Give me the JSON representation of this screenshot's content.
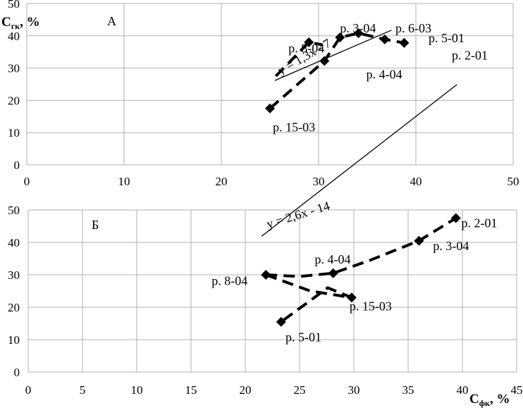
{
  "chart_data": [
    {
      "type": "scatter",
      "panel_label": "А",
      "ylabel_main": "C",
      "ylabel_sub": "гк",
      "ylabel_unit": ", %",
      "xlim": [
        0,
        50
      ],
      "ylim": [
        0,
        50
      ],
      "x_ticks": [
        "0",
        "10",
        "20",
        "30",
        "40",
        "50"
      ],
      "y_ticks": [
        "0",
        "10",
        "20",
        "30",
        "40",
        "50"
      ],
      "grid": true,
      "dashed_path": [
        {
          "x": 25.0,
          "y": 17.5
        },
        {
          "x": 30.6,
          "y": 32.2
        },
        {
          "x": 32.2,
          "y": 39.5
        },
        {
          "x": 34.1,
          "y": 40.8
        },
        {
          "x": 36.8,
          "y": 38.9
        },
        {
          "x": 38.8,
          "y": 37.8
        }
      ],
      "dashed_branch": [
        {
          "x": 25.6,
          "y": 27.5
        },
        {
          "x": 29.0,
          "y": 38.0
        },
        {
          "x": 30.4,
          "y": 37.2
        }
      ],
      "points": [
        {
          "x": 25.0,
          "y": 17.5
        },
        {
          "x": 29.0,
          "y": 38.0
        },
        {
          "x": 30.6,
          "y": 32.2
        },
        {
          "x": 32.2,
          "y": 39.5
        },
        {
          "x": 34.1,
          "y": 40.8
        },
        {
          "x": 36.8,
          "y": 38.9
        },
        {
          "x": 38.8,
          "y": 37.8
        }
      ],
      "trendline": {
        "equation": "y = 1,3x - 7",
        "slope": 1.3,
        "intercept": -7,
        "x_range": [
          25.5,
          37.5
        ]
      },
      "annotations": [
        {
          "text": "р. 8-04",
          "x": 26.9,
          "y": 34.8
        },
        {
          "text": "р. 3-04",
          "x": 32.2,
          "y": 41.0
        },
        {
          "text": "р. 6-03",
          "x": 37.9,
          "y": 41.0
        },
        {
          "text": "р. 5-01",
          "x": 41.3,
          "y": 38.0
        },
        {
          "text": "р. 2-01",
          "x": 43.7,
          "y": 32.6
        },
        {
          "text": "р. 4-04",
          "x": 34.9,
          "y": 26.7
        },
        {
          "text": "р. 15-03",
          "x": 25.3,
          "y": 10.4
        }
      ]
    },
    {
      "type": "scatter",
      "panel_label": "Б",
      "xlabel_main": "C",
      "xlabel_sub": "фк",
      "xlabel_unit": ", %",
      "xlim": [
        0,
        45
      ],
      "ylim": [
        0,
        50
      ],
      "x_ticks": [
        "0",
        "5",
        "10",
        "15",
        "20",
        "25",
        "30",
        "35",
        "40",
        "45"
      ],
      "y_ticks": [
        "0",
        "10",
        "20",
        "30",
        "40",
        "50"
      ],
      "grid": true,
      "dashed_path": [
        {
          "x": 21.9,
          "y": 30.0
        },
        {
          "x": 25.0,
          "y": 29.5
        },
        {
          "x": 28.1,
          "y": 30.5
        },
        {
          "x": 31.5,
          "y": 34.5
        },
        {
          "x": 36.0,
          "y": 40.5
        },
        {
          "x": 39.4,
          "y": 47.5
        }
      ],
      "dashed_branch": [
        {
          "x": 21.9,
          "y": 30.0
        },
        {
          "x": 26.0,
          "y": 25.0
        },
        {
          "x": 29.8,
          "y": 23.0
        },
        {
          "x": 27.6,
          "y": 26.0
        },
        {
          "x": 23.3,
          "y": 15.5
        }
      ],
      "points": [
        {
          "x": 21.9,
          "y": 30.0
        },
        {
          "x": 23.3,
          "y": 15.5
        },
        {
          "x": 28.1,
          "y": 30.5
        },
        {
          "x": 29.8,
          "y": 23.0
        },
        {
          "x": 36.0,
          "y": 40.5
        },
        {
          "x": 39.4,
          "y": 47.5
        }
      ],
      "trendline": {
        "equation": "y = 2,6x - 14",
        "slope": 2.6,
        "intercept": -14,
        "x_range": [
          21.5,
          39.5
        ]
      },
      "annotations": [
        {
          "text": "р. 2-01",
          "x": 39.9,
          "y": 44.7
        },
        {
          "text": "р. 3-04",
          "x": 37.3,
          "y": 37.6
        },
        {
          "text": "р. 4-04",
          "x": 26.4,
          "y": 33.5
        },
        {
          "text": "р. 8-04",
          "x": 16.9,
          "y": 26.8
        },
        {
          "text": "р. 15-03",
          "x": 29.6,
          "y": 19.0
        },
        {
          "text": "р. 5-01",
          "x": 23.7,
          "y": 9.5
        }
      ]
    }
  ]
}
